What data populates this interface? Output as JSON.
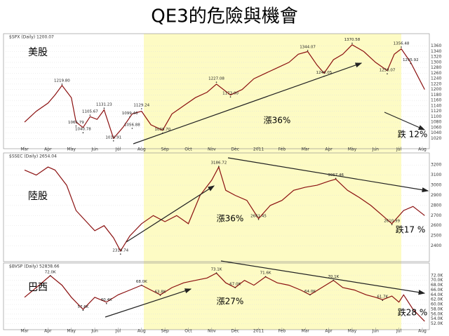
{
  "title": "QE3的危險與機會",
  "chart_data": [
    {
      "type": "line",
      "title": "$SPX (Daily) 1200.07",
      "label": "美股",
      "color": "#8b1010",
      "grid": true,
      "ylim": [
        1000,
        1380
      ],
      "yticks": [
        1020,
        1040,
        1060,
        1080,
        1100,
        1120,
        1140,
        1160,
        1180,
        1200,
        1220,
        1240,
        1260,
        1280,
        1300,
        1320,
        1340,
        1360
      ],
      "xlim": [
        -0.9,
        17.3
      ],
      "xticks": [
        {
          "value": 0,
          "label": "Mar"
        },
        {
          "value": 1,
          "label": "Apr"
        },
        {
          "value": 2,
          "label": "May"
        },
        {
          "value": 3,
          "label": "Jun"
        },
        {
          "value": 4,
          "label": "Jul"
        },
        {
          "value": 5,
          "label": "Aug"
        },
        {
          "value": 6,
          "label": "Sep"
        },
        {
          "value": 7,
          "label": "Oct"
        },
        {
          "value": 8,
          "label": "Nov"
        },
        {
          "value": 9,
          "label": "Dec"
        },
        {
          "value": 10,
          "label": "2011"
        },
        {
          "value": 11,
          "label": "Feb"
        },
        {
          "value": 12,
          "label": "Mar"
        },
        {
          "value": 13,
          "label": "Apr"
        },
        {
          "value": 14,
          "label": "May"
        },
        {
          "value": 15,
          "label": "Jun"
        },
        {
          "value": 16,
          "label": "Jul"
        },
        {
          "value": 17,
          "label": "Aug"
        }
      ],
      "x": [
        0,
        0.5,
        1,
        1.3,
        1.6,
        2.0,
        2.2,
        2.5,
        2.8,
        3.1,
        3.4,
        3.8,
        4.2,
        4.6,
        5.0,
        5.4,
        5.9,
        6.3,
        6.8,
        7.3,
        7.8,
        8.2,
        8.8,
        9.3,
        9.8,
        10.3,
        10.8,
        11.3,
        11.7,
        12.1,
        12.5,
        12.8,
        13.2,
        13.6,
        14.0,
        14.5,
        15.0,
        15.5,
        15.8,
        16.1,
        16.5,
        16.8,
        17.1
      ],
      "values": [
        1080,
        1120,
        1150,
        1180,
        1215,
        1170,
        1080,
        1060,
        1100,
        1090,
        1125,
        1020,
        1060,
        1110,
        1120,
        1070,
        1050,
        1110,
        1140,
        1170,
        1190,
        1220,
        1180,
        1200,
        1240,
        1260,
        1280,
        1300,
        1330,
        1340,
        1290,
        1260,
        1310,
        1330,
        1365,
        1340,
        1300,
        1270,
        1330,
        1350,
        1300,
        1250,
        1200
      ],
      "annotations": [
        {
          "label": "1219.80",
          "x": 1.6,
          "y": 1219.8
        },
        {
          "label": "1065.79",
          "x": 2.2,
          "y": 1065.79
        },
        {
          "label": "1040.78",
          "x": 2.5,
          "y": 1040.78
        },
        {
          "label": "1105.67",
          "x": 2.8,
          "y": 1105.67
        },
        {
          "label": "1131.23",
          "x": 3.4,
          "y": 1131.23
        },
        {
          "label": "1010.91",
          "x": 3.8,
          "y": 1010.91
        },
        {
          "label": "1099.46",
          "x": 4.5,
          "y": 1099.46
        },
        {
          "label": "1056.88",
          "x": 4.6,
          "y": 1056.88
        },
        {
          "label": "1129.24",
          "x": 5.0,
          "y": 1129.24
        },
        {
          "label": "1039.70",
          "x": 5.9,
          "y": 1039.7
        },
        {
          "label": "1227.08",
          "x": 8.2,
          "y": 1227.08
        },
        {
          "label": "1173.00",
          "x": 8.8,
          "y": 1173
        },
        {
          "label": "1344.07",
          "x": 12.1,
          "y": 1344.07
        },
        {
          "label": "1249.05",
          "x": 12.8,
          "y": 1249.05
        },
        {
          "label": "1370.58",
          "x": 14.0,
          "y": 1370.58
        },
        {
          "label": "1258.07",
          "x": 15.5,
          "y": 1258.07
        },
        {
          "label": "1356.48",
          "x": 16.1,
          "y": 1356.48
        },
        {
          "label": "1295.92",
          "x": 16.5,
          "y": 1295.92
        }
      ],
      "notes": [
        "漲36%",
        "跌 12%"
      ]
    },
    {
      "type": "line",
      "title": "$SSEC (Daily) 2654.04",
      "label": "陸股",
      "color": "#8b1010",
      "grid": true,
      "ylim": [
        2300,
        3250
      ],
      "yticks": [
        2400,
        2500,
        2600,
        2700,
        2800,
        2900,
        3000,
        3100,
        3200
      ],
      "xlim": [
        -0.9,
        17.3
      ],
      "x": [
        0,
        0.5,
        1,
        1.3,
        1.8,
        2.2,
        2.6,
        3.0,
        3.4,
        3.8,
        4.1,
        4.5,
        5.0,
        5.5,
        6.0,
        6.5,
        7.0,
        7.5,
        8.0,
        8.3,
        8.6,
        9.0,
        9.5,
        10.0,
        10.5,
        11.0,
        11.5,
        12.0,
        12.5,
        13.0,
        13.3,
        13.8,
        14.3,
        14.8,
        15.3,
        15.7,
        16.2,
        16.6,
        17.1
      ],
      "values": [
        3150,
        3100,
        3180,
        3150,
        3000,
        2750,
        2650,
        2550,
        2600,
        2480,
        2350,
        2500,
        2620,
        2700,
        2640,
        2700,
        2620,
        2900,
        3050,
        3180,
        2950,
        2900,
        2850,
        2670,
        2800,
        2850,
        2950,
        2980,
        3000,
        3040,
        3060,
        2950,
        2880,
        2800,
        2700,
        2620,
        2750,
        2790,
        2700
      ],
      "annotations": [
        {
          "label": "3186.72",
          "x": 8.3,
          "y": 3186.72
        },
        {
          "label": "2319.74",
          "x": 4.1,
          "y": 2319.74
        },
        {
          "label": "2661.45",
          "x": 10.0,
          "y": 2661.45
        },
        {
          "label": "3067.46",
          "x": 13.3,
          "y": 3067.46
        },
        {
          "label": "2610.99",
          "x": 15.7,
          "y": 2610.99
        }
      ],
      "notes": [
        "漲36%",
        "跌17 %"
      ]
    },
    {
      "type": "line",
      "title": "$BVSP (Daily) 52838.66",
      "label": "巴西",
      "color": "#8b1010",
      "grid": true,
      "ylim": [
        51000,
        74000
      ],
      "yticks": [
        {
          "value": 52000,
          "label": "52.0K"
        },
        {
          "value": 54000,
          "label": "54.0K"
        },
        {
          "value": 56000,
          "label": "56.0K"
        },
        {
          "value": 58000,
          "label": "58.0K"
        },
        {
          "value": 60000,
          "label": "60.0K"
        },
        {
          "value": 62000,
          "label": "62.0K"
        },
        {
          "value": 64000,
          "label": "64.0K"
        },
        {
          "value": 66000,
          "label": "66.0K"
        },
        {
          "value": 68000,
          "label": "68.0K"
        },
        {
          "value": 70000,
          "label": "70.0K"
        },
        {
          "value": 72000,
          "label": "72.0K"
        }
      ],
      "xlim": [
        -0.9,
        17.3
      ],
      "xticks": [
        {
          "value": 0,
          "label": "Mar"
        },
        {
          "value": 1,
          "label": "Apr"
        },
        {
          "value": 2,
          "label": "May"
        },
        {
          "value": 3,
          "label": "Jun"
        },
        {
          "value": 4,
          "label": "Jul"
        },
        {
          "value": 5,
          "label": "Aug"
        },
        {
          "value": 6,
          "label": "Sep"
        },
        {
          "value": 7,
          "label": "Oct"
        },
        {
          "value": 8,
          "label": "Nov"
        },
        {
          "value": 9,
          "label": "Dec"
        },
        {
          "value": 10,
          "label": "2011"
        },
        {
          "value": 11,
          "label": "Feb"
        },
        {
          "value": 12,
          "label": "Mar"
        },
        {
          "value": 13,
          "label": "Apr"
        },
        {
          "value": 14,
          "label": "May"
        },
        {
          "value": 15,
          "label": "Jun"
        },
        {
          "value": 16,
          "label": "Jul"
        },
        {
          "value": 17,
          "label": "Aug"
        }
      ],
      "x": [
        0,
        0.5,
        1.1,
        1.6,
        2.0,
        2.5,
        3.0,
        3.5,
        4.0,
        4.5,
        5.0,
        5.4,
        5.8,
        6.3,
        6.8,
        7.3,
        7.8,
        8.2,
        8.6,
        9.0,
        9.4,
        9.8,
        10.3,
        10.8,
        11.3,
        11.8,
        12.2,
        12.7,
        13.2,
        13.6,
        14.1,
        14.6,
        15.0,
        15.3,
        15.7,
        16.0,
        16.2,
        16.6,
        17.1
      ],
      "values": [
        63000,
        67000,
        72000,
        68000,
        63000,
        58000,
        63000,
        61000,
        64000,
        66000,
        68000,
        66000,
        64000,
        67000,
        69000,
        70000,
        71000,
        73000,
        69000,
        67000,
        70000,
        68000,
        71500,
        69000,
        68000,
        66000,
        64000,
        67000,
        70000,
        67000,
        66000,
        64000,
        63000,
        62000,
        63500,
        61000,
        64000,
        58000,
        53000
      ],
      "annotations": [
        {
          "label": "72.0K",
          "x": 1.1,
          "y": 72000
        },
        {
          "label": "57.6K",
          "x": 2.5,
          "y": 57600
        },
        {
          "label": "60.4K",
          "x": 3.5,
          "y": 60400
        },
        {
          "label": "68.0K",
          "x": 5.0,
          "y": 68000
        },
        {
          "label": "63.8K",
          "x": 5.8,
          "y": 63800
        },
        {
          "label": "73.1K",
          "x": 8.2,
          "y": 73100
        },
        {
          "label": "67.0K",
          "x": 9.0,
          "y": 67000
        },
        {
          "label": "71.6K",
          "x": 10.3,
          "y": 71600
        },
        {
          "label": "64.0K",
          "x": 12.2,
          "y": 64000
        },
        {
          "label": "70.1K",
          "x": 13.2,
          "y": 70100
        },
        {
          "label": "61.7K",
          "x": 15.3,
          "y": 61700
        }
      ],
      "notes": [
        "漲27%",
        "跌28 %"
      ]
    }
  ]
}
